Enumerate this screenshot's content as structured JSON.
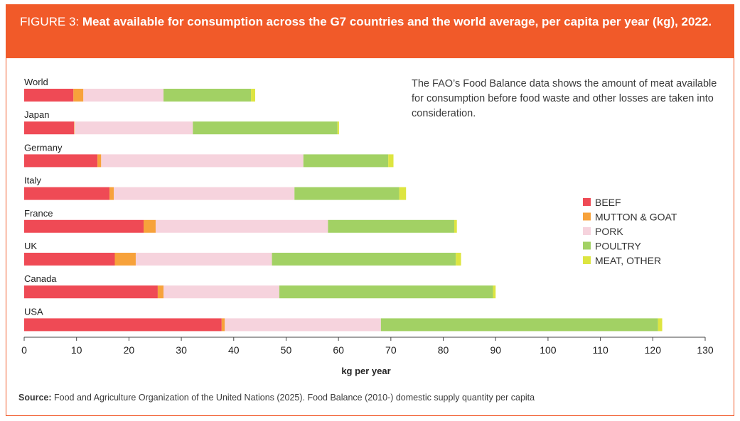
{
  "header": {
    "label": "FIGURE 3: ",
    "title": "Meat available for consumption across the G7 countries and the world average, per capita per year (kg), 2022."
  },
  "note": "The FAO’s Food Balance data shows the amount of meat available for consumption before food waste and other losses are taken into consideration.",
  "source": {
    "prefix": "Source:",
    "text": " Food and Agriculture Organization of the United Nations (2025). Food Balance (2010-) domestic supply quantity per capita"
  },
  "colors": {
    "header_bg": "#f15a29",
    "BEEF": "#ef4a55",
    "MUTTON & GOAT": "#f7a23b",
    "PORK": "#f6d3dd",
    "POULTRY": "#a2d164",
    "MEAT, OTHER": "#dde540"
  },
  "chart_data": {
    "type": "bar",
    "orientation": "horizontal",
    "stacked": true,
    "categories": [
      "World",
      "Japan",
      "Germany",
      "Italy",
      "France",
      "UK",
      "Canada",
      "USA"
    ],
    "series": [
      {
        "name": "BEEF",
        "values": [
          9.4,
          9.5,
          14.0,
          16.3,
          22.8,
          17.3,
          25.5,
          37.7
        ]
      },
      {
        "name": "MUTTON & GOAT",
        "values": [
          1.9,
          0.1,
          0.7,
          0.8,
          2.3,
          4.0,
          1.1,
          0.6
        ]
      },
      {
        "name": "PORK",
        "values": [
          15.3,
          22.6,
          38.6,
          34.5,
          32.9,
          26.0,
          22.1,
          29.8
        ]
      },
      {
        "name": "POULTRY",
        "values": [
          16.7,
          27.6,
          16.2,
          20.0,
          24.1,
          35.1,
          40.8,
          52.9
        ]
      },
      {
        "name": "MEAT, OTHER",
        "values": [
          0.8,
          0.3,
          1.0,
          1.3,
          0.5,
          1.0,
          0.5,
          0.8
        ]
      }
    ],
    "xlabel": "kg per year",
    "xlim": [
      0,
      130
    ],
    "xticks": [
      0,
      10,
      20,
      30,
      40,
      50,
      60,
      70,
      80,
      90,
      100,
      110,
      120,
      130
    ],
    "legend": [
      "BEEF",
      "MUTTON & GOAT",
      "PORK",
      "POULTRY",
      "MEAT, OTHER"
    ],
    "legend_position": "right",
    "grid": false
  }
}
